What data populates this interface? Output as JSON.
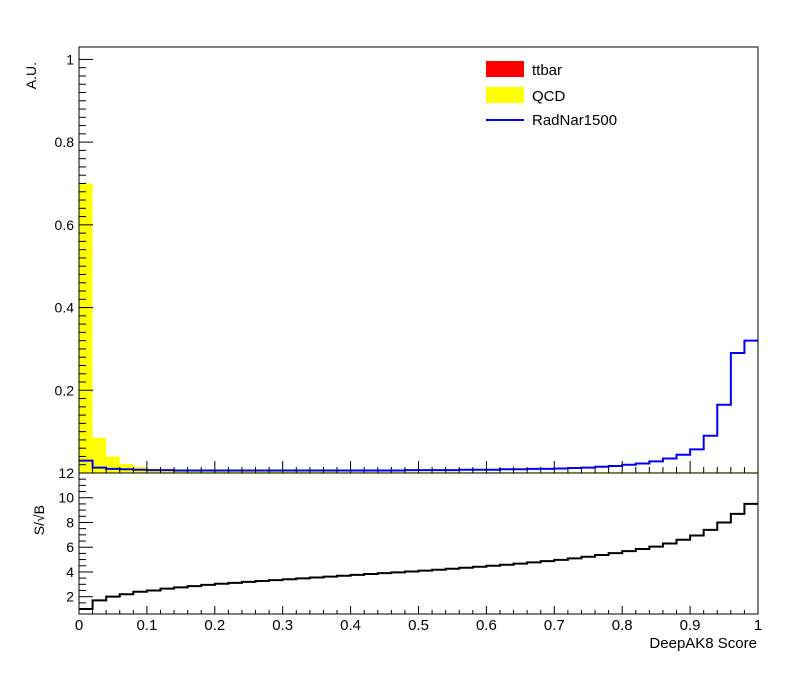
{
  "chart_data": [
    {
      "panel": "top",
      "type": "histogram",
      "ylabel": "A.U.",
      "ylim": [
        0,
        1.03
      ],
      "yticks": [
        0.2,
        0.4,
        0.6,
        0.8,
        1
      ],
      "xlim": [
        0,
        1
      ],
      "bin_width": 0.02,
      "legend_position": "top-right",
      "series": [
        {
          "name": "ttbar",
          "style": "filled",
          "color": "#ff0000",
          "values": []
        },
        {
          "name": "QCD",
          "style": "filled",
          "color": "#ffff00",
          "values": [
            0.7,
            0.085,
            0.04,
            0.022,
            0.015,
            0.011,
            0.009,
            0.008,
            0.007,
            0.006,
            0.005,
            0.005,
            0.004,
            0.004,
            0.004,
            0.003,
            0.003,
            0.003,
            0.003,
            0.002,
            0.002,
            0.002,
            0.002,
            0.002,
            0.002,
            0.002,
            0.002,
            0.002,
            0.002,
            0.002,
            0.002,
            0.002,
            0.002,
            0.002,
            0.002,
            0.002,
            0.002,
            0.002,
            0.002,
            0.002,
            0.002,
            0.002,
            0.002,
            0.002,
            0.002,
            0.002,
            0.002,
            0.002,
            0.002,
            0.002
          ]
        },
        {
          "name": "RadNar1500",
          "style": "line",
          "color": "#0000ff",
          "values": [
            0.03,
            0.013,
            0.01,
            0.009,
            0.008,
            0.007,
            0.007,
            0.006,
            0.006,
            0.006,
            0.006,
            0.006,
            0.006,
            0.006,
            0.006,
            0.006,
            0.006,
            0.006,
            0.006,
            0.006,
            0.006,
            0.006,
            0.006,
            0.006,
            0.007,
            0.007,
            0.007,
            0.007,
            0.008,
            0.008,
            0.008,
            0.009,
            0.009,
            0.01,
            0.01,
            0.011,
            0.012,
            0.013,
            0.015,
            0.017,
            0.02,
            0.023,
            0.028,
            0.035,
            0.044,
            0.057,
            0.09,
            0.165,
            0.29,
            0.32
          ]
        }
      ]
    },
    {
      "panel": "bottom",
      "type": "histogram",
      "ylabel": "S/√B",
      "xlabel": "DeepAK8 Score",
      "ylim": [
        0.6,
        12
      ],
      "yticks": [
        2,
        4,
        6,
        8,
        10,
        12
      ],
      "xlim": [
        0,
        1
      ],
      "xticks": [
        0,
        0.1,
        0.2,
        0.3,
        0.4,
        0.5,
        0.6,
        0.7,
        0.8,
        0.9,
        1
      ],
      "bin_width": 0.02,
      "series": [
        {
          "name": "",
          "style": "line",
          "color": "#000000",
          "values": [
            1.0,
            1.7,
            2.0,
            2.2,
            2.4,
            2.5,
            2.65,
            2.75,
            2.85,
            2.95,
            3.05,
            3.12,
            3.2,
            3.27,
            3.34,
            3.41,
            3.48,
            3.55,
            3.62,
            3.69,
            3.76,
            3.83,
            3.9,
            3.97,
            4.04,
            4.11,
            4.18,
            4.26,
            4.34,
            4.42,
            4.5,
            4.58,
            4.67,
            4.77,
            4.87,
            4.98,
            5.1,
            5.23,
            5.37,
            5.52,
            5.68,
            5.86,
            6.05,
            6.3,
            6.6,
            6.95,
            7.4,
            8.0,
            8.7,
            9.5
          ]
        }
      ]
    }
  ],
  "tick_labels": {
    "top_y": [
      "0.2",
      "0.4",
      "0.6",
      "0.8",
      "1"
    ],
    "bottom_y": [
      "2",
      "4",
      "6",
      "8",
      "10",
      "12"
    ],
    "x": [
      "0",
      "0.1",
      "0.2",
      "0.3",
      "0.4",
      "0.5",
      "0.6",
      "0.7",
      "0.8",
      "0.9",
      "1"
    ]
  }
}
